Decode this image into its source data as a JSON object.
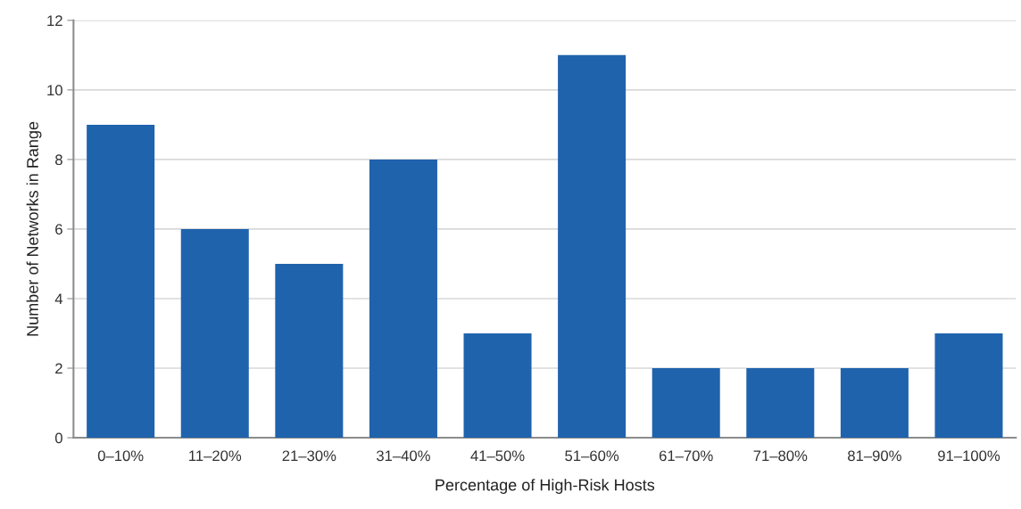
{
  "chart_data": {
    "type": "bar",
    "xlabel": "Percentage of High-Risk Hosts",
    "ylabel": "Number of Networks in Range",
    "categories": [
      "0–10%",
      "11–20%",
      "21–30%",
      "31–40%",
      "41–50%",
      "51–60%",
      "61–70%",
      "71–80%",
      "81–90%",
      "91–100%"
    ],
    "values": [
      9,
      6,
      5,
      8,
      3,
      11,
      2,
      2,
      2,
      3
    ],
    "color": "#1f63ad",
    "ylim": [
      0,
      12
    ],
    "yticks": [
      0,
      2,
      4,
      6,
      8,
      10,
      12
    ],
    "grid": "y"
  }
}
